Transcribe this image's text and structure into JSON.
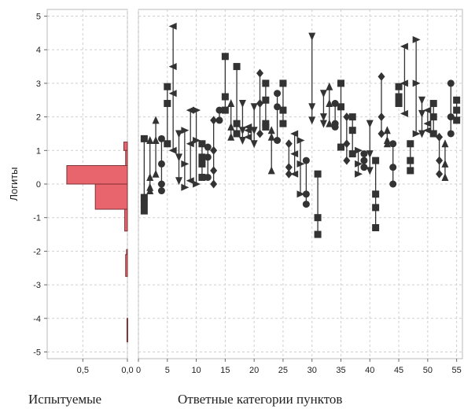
{
  "chart_data": [
    {
      "type": "bar",
      "orientation": "horizontal",
      "xlabel": "Испытуемые",
      "ylabel": "Логиты",
      "x_ticks": [
        "0,5",
        "0,0"
      ],
      "xlim": [
        0.9,
        0.0
      ],
      "ylim": [
        -5.2,
        5.2
      ],
      "y_ticks": [
        "5",
        "4",
        "3",
        "2",
        "1",
        "0",
        "-1",
        "-2",
        "-3",
        "-4",
        "-5"
      ],
      "grid": true,
      "bar_color": "#e9656d",
      "bins": [
        {
          "y_from": 1.0,
          "y_to": 1.25,
          "value": 0.04
        },
        {
          "y_from": 0.5,
          "y_to": 1.0,
          "value": 0.02
        },
        {
          "y_from": 0.0,
          "y_to": 0.55,
          "value": 0.68
        },
        {
          "y_from": -0.75,
          "y_to": 0.0,
          "value": 0.36
        },
        {
          "y_from": -1.4,
          "y_to": -0.75,
          "value": 0.03
        },
        {
          "y_from": -2.1,
          "y_to": -1.95,
          "value": 0.01
        },
        {
          "y_from": -2.75,
          "y_to": -2.1,
          "value": 0.02
        },
        {
          "y_from": -4.7,
          "y_to": -4.0,
          "value": 0.005
        }
      ]
    },
    {
      "type": "scatter",
      "xlabel": "Ответные категории пунктов",
      "x_ticks": [
        "0",
        "5",
        "10",
        "15",
        "20",
        "25",
        "30",
        "35",
        "40",
        "45",
        "50",
        "55"
      ],
      "xlim": [
        0,
        56
      ],
      "ylim": [
        -5.2,
        5.2
      ],
      "grid": true,
      "marker_color": "#333333",
      "items": [
        {
          "x": 1,
          "marker": "square",
          "values": [
            1.35,
            -0.4,
            -0.6,
            -0.8
          ]
        },
        {
          "x": 2,
          "marker": "triangle-up",
          "values": [
            1.3,
            0.2,
            -0.1,
            -0.2
          ]
        },
        {
          "x": 3,
          "marker": "triangle-up",
          "values": [
            1.9,
            1.3,
            0.3
          ]
        },
        {
          "x": 4,
          "marker": "circle",
          "values": [
            1.35,
            0.6,
            0.0,
            -0.2
          ]
        },
        {
          "x": 5,
          "marker": "square",
          "values": [
            2.9,
            2.4,
            1.2
          ]
        },
        {
          "x": 6,
          "marker": "triangle-left",
          "values": [
            4.7,
            3.5,
            2.7,
            1.0
          ]
        },
        {
          "x": 7,
          "marker": "triangle-down",
          "values": [
            1.5,
            0.8,
            0.1
          ]
        },
        {
          "x": 8,
          "marker": "triangle-right",
          "values": [
            1.6,
            0.6,
            -0.1
          ]
        },
        {
          "x": 9,
          "marker": "triangle-left",
          "values": [
            2.2,
            1.2,
            0.1
          ]
        },
        {
          "x": 10,
          "marker": "triangle-right",
          "values": [
            2.2,
            1.3,
            0.0
          ]
        },
        {
          "x": 11,
          "marker": "square",
          "values": [
            1.2,
            0.8,
            0.6,
            0.2
          ]
        },
        {
          "x": 12,
          "marker": "circle",
          "values": [
            1.1,
            0.8,
            0.2
          ]
        },
        {
          "x": 13,
          "marker": "diamond",
          "values": [
            1.9,
            1.0,
            0.4,
            0.0
          ]
        },
        {
          "x": 14,
          "marker": "circle",
          "values": [
            2.2,
            1.9
          ]
        },
        {
          "x": 15,
          "marker": "square",
          "values": [
            3.8,
            2.6,
            2.2
          ]
        },
        {
          "x": 16,
          "marker": "triangle-up",
          "values": [
            2.4,
            1.7,
            1.4
          ]
        },
        {
          "x": 17,
          "marker": "square",
          "values": [
            3.5,
            1.8,
            1.5
          ]
        },
        {
          "x": 18,
          "marker": "triangle-down",
          "values": [
            2.4,
            1.6,
            1.3
          ]
        },
        {
          "x": 19,
          "marker": "triangle-left",
          "values": [
            1.7,
            1.4,
            1.6
          ]
        },
        {
          "x": 20,
          "marker": "triangle-down",
          "values": [
            2.3,
            1.6,
            1.2
          ]
        },
        {
          "x": 21,
          "marker": "diamond",
          "values": [
            3.3,
            2.4,
            1.5
          ]
        },
        {
          "x": 22,
          "marker": "square",
          "values": [
            3.0,
            2.5,
            1.8,
            1.7
          ]
        },
        {
          "x": 23,
          "marker": "triangle-up",
          "values": [
            1.6,
            1.4,
            0.4
          ]
        },
        {
          "x": 24,
          "marker": "circle",
          "values": [
            2.7,
            2.3,
            1.3
          ]
        },
        {
          "x": 25,
          "marker": "square",
          "values": [
            3.0,
            2.2,
            1.8
          ]
        },
        {
          "x": 26,
          "marker": "diamond",
          "values": [
            1.2,
            0.5,
            0.3
          ]
        },
        {
          "x": 27,
          "marker": "triangle-left",
          "values": [
            1.5,
            0.9,
            0.3
          ]
        },
        {
          "x": 28,
          "marker": "triangle-right",
          "values": [
            1.3,
            0.6,
            -0.3
          ]
        },
        {
          "x": 29,
          "marker": "circle",
          "values": [
            0.7,
            -0.3,
            -0.6
          ]
        },
        {
          "x": 30,
          "marker": "triangle-down",
          "values": [
            4.4,
            2.3,
            1.9
          ]
        },
        {
          "x": 31,
          "marker": "square",
          "values": [
            0.3,
            -1.0,
            -1.5
          ]
        },
        {
          "x": 32,
          "marker": "triangle-down",
          "values": [
            2.7,
            2.0,
            1.8
          ]
        },
        {
          "x": 33,
          "marker": "triangle-up",
          "values": [
            2.9,
            2.4,
            1.8
          ]
        },
        {
          "x": 34,
          "marker": "circle",
          "values": [
            2.4,
            1.8,
            1.7
          ]
        },
        {
          "x": 35,
          "marker": "square",
          "values": [
            3.0,
            2.3,
            1.1
          ]
        },
        {
          "x": 36,
          "marker": "diamond",
          "values": [
            2.0,
            1.2,
            0.7
          ]
        },
        {
          "x": 37,
          "marker": "square",
          "values": [
            2.0,
            1.6,
            0.9
          ]
        },
        {
          "x": 38,
          "marker": "triangle-right",
          "values": [
            1.0,
            0.6,
            0.3
          ]
        },
        {
          "x": 39,
          "marker": "circle",
          "values": [
            0.9,
            0.7,
            0.5
          ]
        },
        {
          "x": 40,
          "marker": "triangle-down",
          "values": [
            1.8,
            0.9,
            0.4
          ]
        },
        {
          "x": 41,
          "marker": "square",
          "values": [
            0.7,
            -0.3,
            -0.7,
            -1.3
          ]
        },
        {
          "x": 42,
          "marker": "diamond",
          "values": [
            3.2,
            2.0,
            1.5
          ]
        },
        {
          "x": 43,
          "marker": "triangle-up",
          "values": [
            1.6,
            1.3,
            1.2
          ]
        },
        {
          "x": 44,
          "marker": "circle",
          "values": [
            1.2,
            0.5,
            0.0
          ]
        },
        {
          "x": 45,
          "marker": "square",
          "values": [
            2.9,
            2.6,
            2.4
          ]
        },
        {
          "x": 46,
          "marker": "triangle-left",
          "values": [
            4.1,
            3.0,
            2.1
          ]
        },
        {
          "x": 47,
          "marker": "square",
          "values": [
            1.2,
            0.7,
            0.4
          ]
        },
        {
          "x": 48,
          "marker": "triangle-right",
          "values": [
            4.3,
            3.0,
            1.5
          ]
        },
        {
          "x": 49,
          "marker": "triangle-down",
          "values": [
            2.5,
            2.1,
            1.5
          ]
        },
        {
          "x": 50,
          "marker": "triangle-left",
          "values": [
            2.2,
            1.8,
            1.6
          ]
        },
        {
          "x": 51,
          "marker": "square",
          "values": [
            2.4,
            2.0,
            1.5
          ]
        },
        {
          "x": 52,
          "marker": "diamond",
          "values": [
            1.4,
            0.7,
            0.3
          ]
        },
        {
          "x": 53,
          "marker": "triangle-up",
          "values": [
            1.2,
            0.6,
            0.2
          ]
        },
        {
          "x": 54,
          "marker": "circle",
          "values": [
            3.0,
            2.0,
            1.5
          ]
        },
        {
          "x": 55,
          "marker": "square",
          "values": [
            2.5,
            2.2,
            1.9
          ]
        }
      ]
    }
  ]
}
